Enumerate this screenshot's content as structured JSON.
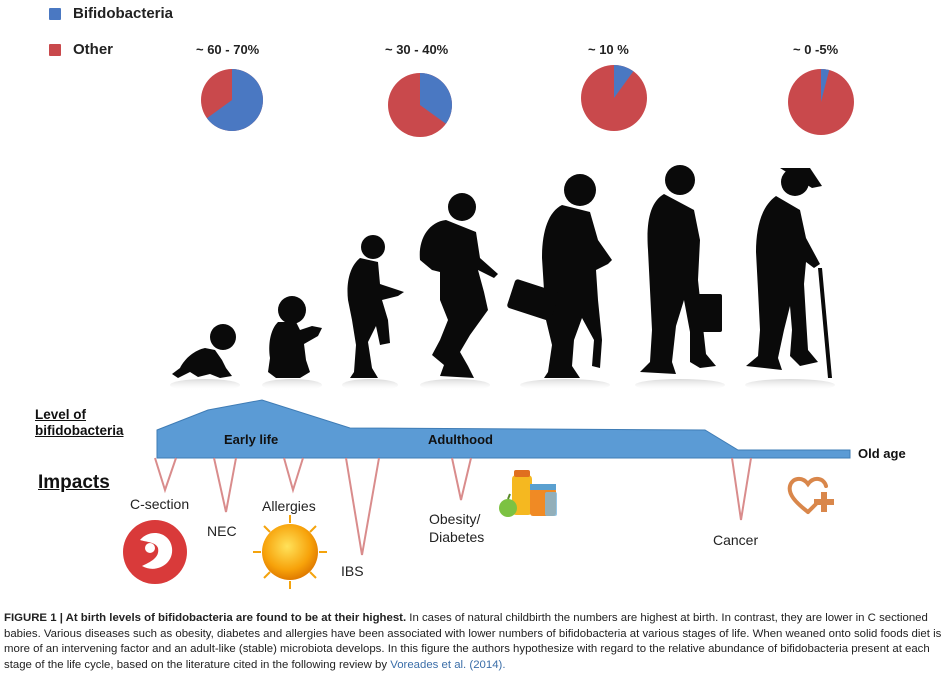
{
  "legend": [
    {
      "label": "Bifidobacteria",
      "color": "#4a78c2"
    },
    {
      "label": "Other",
      "color": "#c9494c"
    }
  ],
  "chart_data": {
    "type": "pie",
    "charts": [
      {
        "label": "~ 60 - 70%",
        "bifidobacteria_percent": 65,
        "other_percent": 35
      },
      {
        "label": "~ 30 - 40%",
        "bifidobacteria_percent": 35,
        "other_percent": 65
      },
      {
        "label": "~ 10 %",
        "bifidobacteria_percent": 10,
        "other_percent": 90
      },
      {
        "label": "~ 0 -5%",
        "bifidobacteria_percent": 4,
        "other_percent": 96
      }
    ]
  },
  "level_label": "Level of bifidobacteria",
  "stages": [
    "Early life",
    "Adulthood",
    "Old age"
  ],
  "impacts_title": "Impacts",
  "impacts": [
    "C-section",
    "NEC",
    "Allergies",
    "IBS",
    "Obesity/ Diabetes",
    "Cancer"
  ],
  "caption": {
    "figure": "FIGURE 1 | ",
    "headline": "At birth levels of bifidobacteria are found to be at their highest.",
    "body": " In cases of natural childbirth the numbers are highest at birth. In contrast, they are lower in C sectioned babies. Various diseases such as obesity, diabetes and allergies have been associated with lower numbers of bifidobacteria at various stages of life. When weaned onto solid foods diet is more of an intervening factor and an adult-like (stable) microbiota develops. In this figure the authors hypothesize with regard to the relative abundance of bifidobacteria present at each stage of the life cycle, based on the literature cited in the following review by ",
    "reference": "Voreades et al.",
    "year": " (2014)."
  },
  "colors": {
    "bifido": "#4a78c2",
    "other": "#c9494c",
    "band": "#5b9bd5",
    "impact_line": "#d98c8c",
    "silhouette": "#0a0a0a"
  }
}
